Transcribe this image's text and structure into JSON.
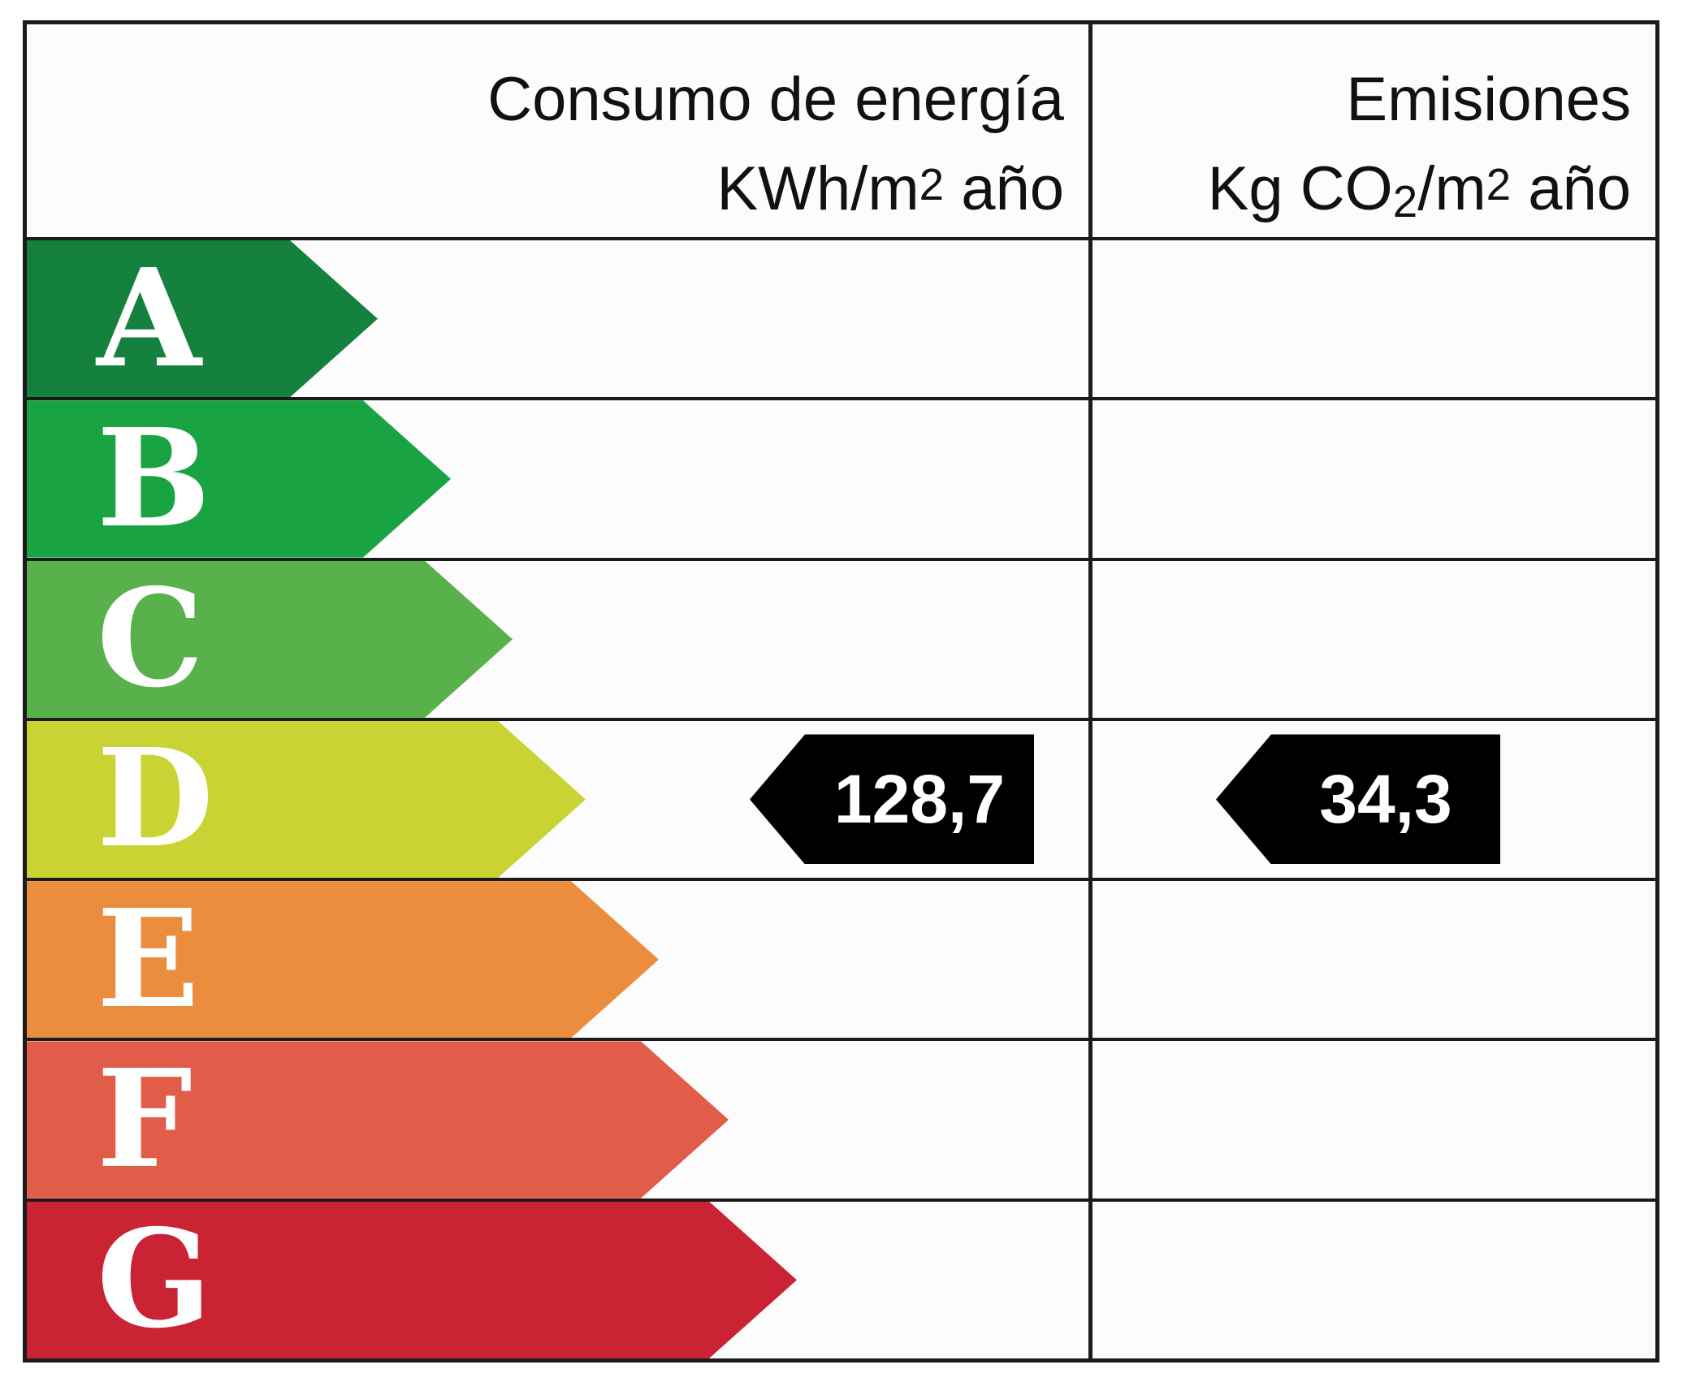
{
  "header": {
    "energy_col": {
      "title": "Consumo de energía",
      "unit": {
        "prefix": "KWh/m",
        "sup": "2",
        "suffix": " año"
      }
    },
    "emissions_col": {
      "title": "Emisiones",
      "unit": {
        "prefix": "Kg CO",
        "sub": "2",
        "mid": "/m",
        "sup": "2",
        "suffix": " año"
      }
    }
  },
  "scale": {
    "bands": [
      {
        "letter": "A",
        "color": "#15813F",
        "arrow_width": 432
      },
      {
        "letter": "B",
        "color": "#1AA343",
        "arrow_width": 522
      },
      {
        "letter": "C",
        "color": "#58B14A",
        "arrow_width": 598
      },
      {
        "letter": "D",
        "color": "#C9D434",
        "arrow_width": 688
      },
      {
        "letter": "E",
        "color": "#EB8D3F",
        "arrow_width": 778
      },
      {
        "letter": "F",
        "color": "#E15C49",
        "arrow_width": 864
      },
      {
        "letter": "G",
        "color": "#C92334",
        "arrow_width": 948
      }
    ]
  },
  "indicators": {
    "band": "D",
    "energy_value": "128,7",
    "emissions_value": "34,3",
    "arrow_color": "#000000",
    "text_color": "#ffffff"
  },
  "colors": {
    "line": "#1b1b1b",
    "cell_background": "#fcfcfc",
    "band_letter": "#ffffff"
  },
  "chart_data": {
    "type": "bar",
    "categories": [
      "A",
      "B",
      "C",
      "D",
      "E",
      "F",
      "G"
    ],
    "columns": [
      "Consumo de energía KWh/m2 año",
      "Emisiones Kg CO2/m2 año"
    ],
    "rating_band": "D",
    "values": {
      "consumo_energia_kwh_m2_ano": "128,7",
      "emisiones_kg_co2_m2_ano": "34,3"
    },
    "band_colors": [
      "#15813F",
      "#1AA343",
      "#58B14A",
      "#C9D434",
      "#EB8D3F",
      "#E15C49",
      "#C92334"
    ],
    "legend_position": "none",
    "grid": "table-lines"
  }
}
